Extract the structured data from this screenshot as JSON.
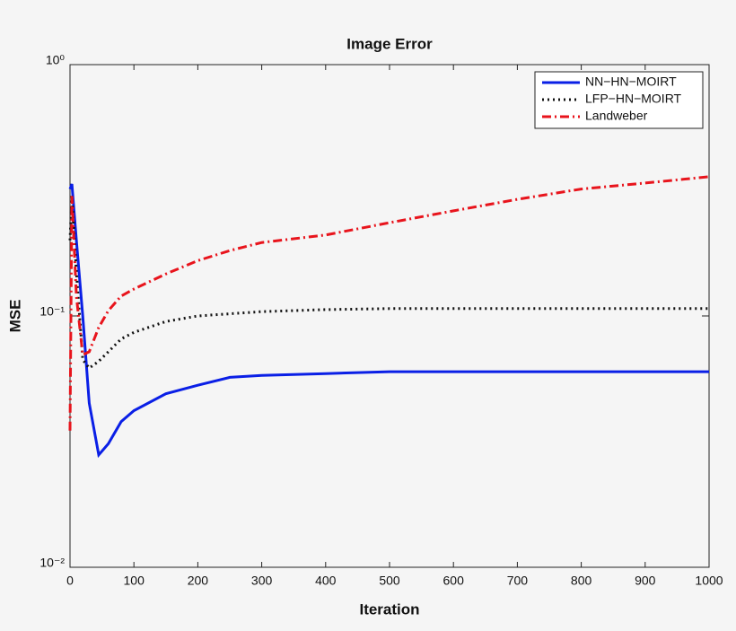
{
  "chart_data": {
    "type": "line",
    "title": "Image Error",
    "xlabel": "Iteration",
    "ylabel": "MSE",
    "log_y": true,
    "legend": "top-right",
    "x": [
      0,
      3,
      10,
      20,
      30,
      45,
      60,
      80,
      100,
      150,
      200,
      250,
      300,
      400,
      500,
      600,
      700,
      800,
      900,
      1000
    ],
    "series": [
      {
        "name": "NN−HN−MOIRT",
        "color": "#0a1fe6",
        "style": "solid",
        "values": [
          0.32,
          0.335,
          0.2,
          0.1,
          0.045,
          0.028,
          0.031,
          0.038,
          0.042,
          0.049,
          0.053,
          0.057,
          0.058,
          0.059,
          0.06,
          0.06,
          0.06,
          0.06,
          0.06,
          0.06
        ]
      },
      {
        "name": "LFP−HN−MOIRT",
        "color": "#111111",
        "style": "dotted",
        "values": [
          0.2,
          0.3,
          0.15,
          0.067,
          0.062,
          0.066,
          0.072,
          0.081,
          0.086,
          0.095,
          0.1,
          0.102,
          0.104,
          0.106,
          0.107,
          0.107,
          0.107,
          0.107,
          0.107,
          0.107
        ]
      },
      {
        "name": "Landweber",
        "color": "#e8141c",
        "style": "dashdot",
        "values": [
          0.035,
          0.3,
          0.12,
          0.07,
          0.072,
          0.09,
          0.105,
          0.12,
          0.128,
          0.147,
          0.166,
          0.182,
          0.196,
          0.21,
          0.235,
          0.262,
          0.291,
          0.32,
          0.338,
          0.358
        ]
      }
    ],
    "xlim": [
      0,
      1000
    ],
    "xticks": [
      0,
      100,
      200,
      300,
      400,
      500,
      600,
      700,
      800,
      900,
      1000
    ],
    "ylim": [
      0.01,
      1
    ],
    "yticks": [
      {
        "value": 0.01,
        "label": "10⁻²"
      },
      {
        "value": 0.1,
        "label": "10⁻¹"
      },
      {
        "value": 1,
        "label": "10⁰"
      }
    ]
  }
}
